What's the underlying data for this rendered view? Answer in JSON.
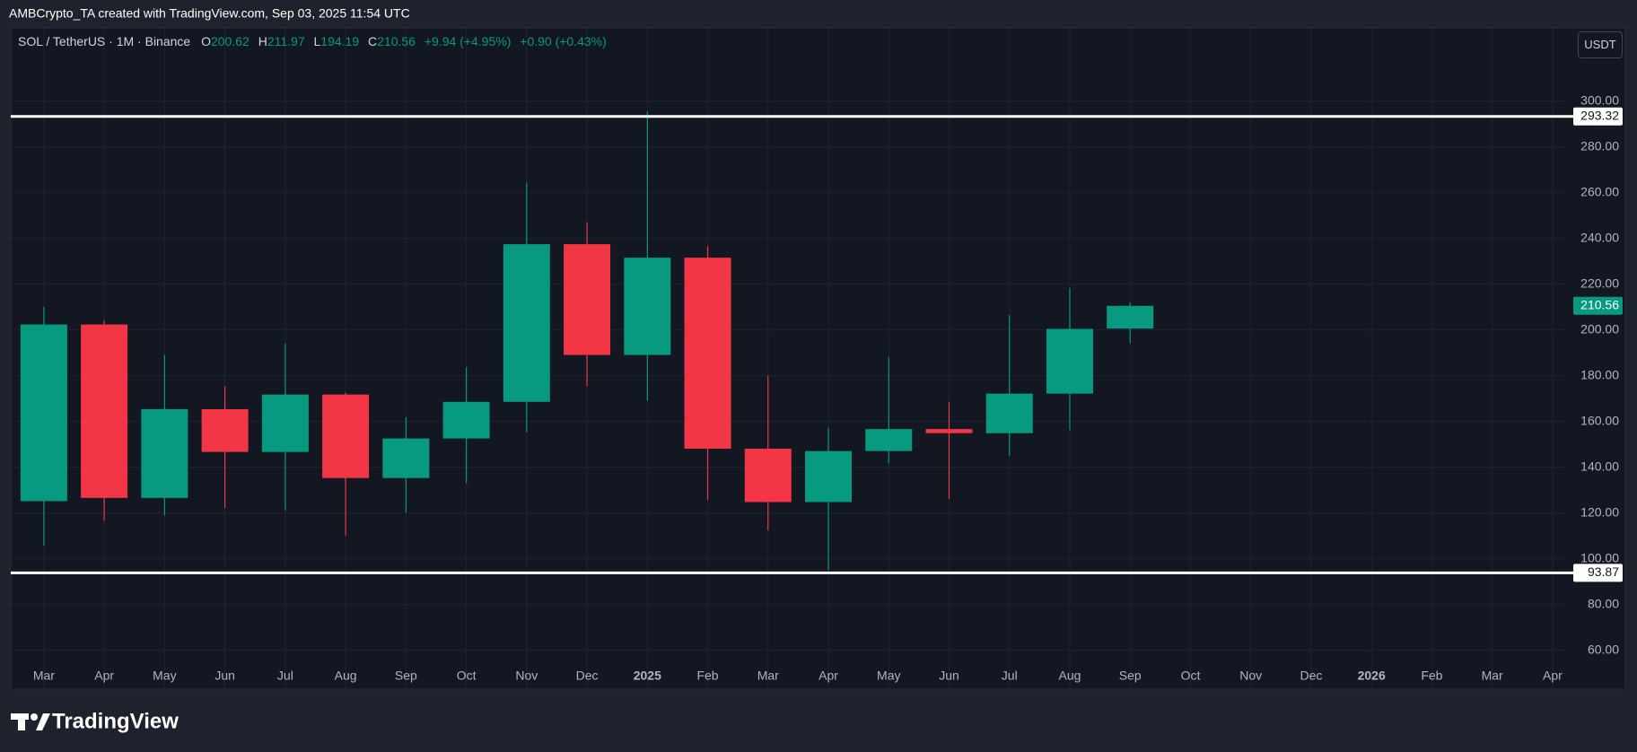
{
  "caption": "AMBCrypto_TA created with TradingView.com, Sep 03, 2025 11:54 UTC",
  "branding": "TradingView",
  "chart_data": {
    "type": "candlestick",
    "title": "SOL / TetherUS · 1M · Binance",
    "legend_prefixes": [
      "O",
      "H",
      "L",
      "C"
    ],
    "changes": [
      "+9.94 (+4.95%)",
      "+0.90 (+0.43%)"
    ],
    "currency": "USDT",
    "categories": [
      "Mar",
      "Apr",
      "May",
      "Jun",
      "Jul",
      "Aug",
      "Sep",
      "Oct",
      "Nov",
      "Dec",
      "2025",
      "Feb",
      "Mar",
      "Apr",
      "May",
      "Jun",
      "Jul",
      "Aug",
      "Sep",
      "Oct",
      "Nov",
      "Dec",
      "2026",
      "Feb",
      "Mar",
      "Apr"
    ],
    "open": [
      125.2,
      202.4,
      126.6,
      165.4,
      146.7,
      171.8,
      135.3,
      152.6,
      168.6,
      237.5,
      189.1,
      231.6,
      148.1,
      124.8,
      147.1,
      156.7,
      154.9,
      172.2,
      200.62,
      null,
      null,
      null,
      null,
      null,
      null,
      null
    ],
    "high": [
      210.1,
      204.2,
      189.1,
      175.4,
      194.1,
      172.7,
      161.8,
      183.7,
      264.4,
      247.1,
      295.4,
      236.6,
      180.0,
      157.2,
      188.2,
      168.6,
      206.5,
      218.3,
      211.97,
      null,
      null,
      null,
      null,
      null,
      null,
      null
    ],
    "low": [
      105.6,
      116.6,
      118.9,
      122.1,
      121.1,
      110.2,
      120.2,
      133.0,
      155.4,
      175.4,
      169.1,
      125.7,
      112.5,
      95.1,
      141.7,
      126.2,
      144.9,
      156.3,
      194.19,
      null,
      null,
      null,
      null,
      null,
      null,
      null
    ],
    "close": [
      202.4,
      126.6,
      165.4,
      146.7,
      171.8,
      135.3,
      152.6,
      168.6,
      237.5,
      189.1,
      231.6,
      148.1,
      124.8,
      147.1,
      156.7,
      154.9,
      172.2,
      200.5,
      210.56,
      null,
      null,
      null,
      null,
      null,
      null,
      null
    ],
    "up_color": "#089981",
    "down_color": "#f23645",
    "levels": [
      293.32,
      93.87
    ],
    "level_color": "#ffffff",
    "ylim": [
      43.1,
      331.9
    ],
    "yticks": [
      {
        "value": 60,
        "label": "60.00"
      },
      {
        "value": 80,
        "label": "80.00"
      },
      {
        "value": 100,
        "label": "100.00"
      },
      {
        "value": 120,
        "label": "120.00"
      },
      {
        "value": 140,
        "label": "140.00"
      },
      {
        "value": 160,
        "label": "160.00"
      },
      {
        "value": 180,
        "label": "180.00"
      },
      {
        "value": 200,
        "label": "200.00"
      },
      {
        "value": 220,
        "label": "220.00"
      },
      {
        "value": 240,
        "label": "240.00"
      },
      {
        "value": 260,
        "label": "260.00"
      },
      {
        "value": 280,
        "label": "280.00"
      },
      {
        "value": 300,
        "label": "300.00"
      }
    ],
    "grid": true
  }
}
